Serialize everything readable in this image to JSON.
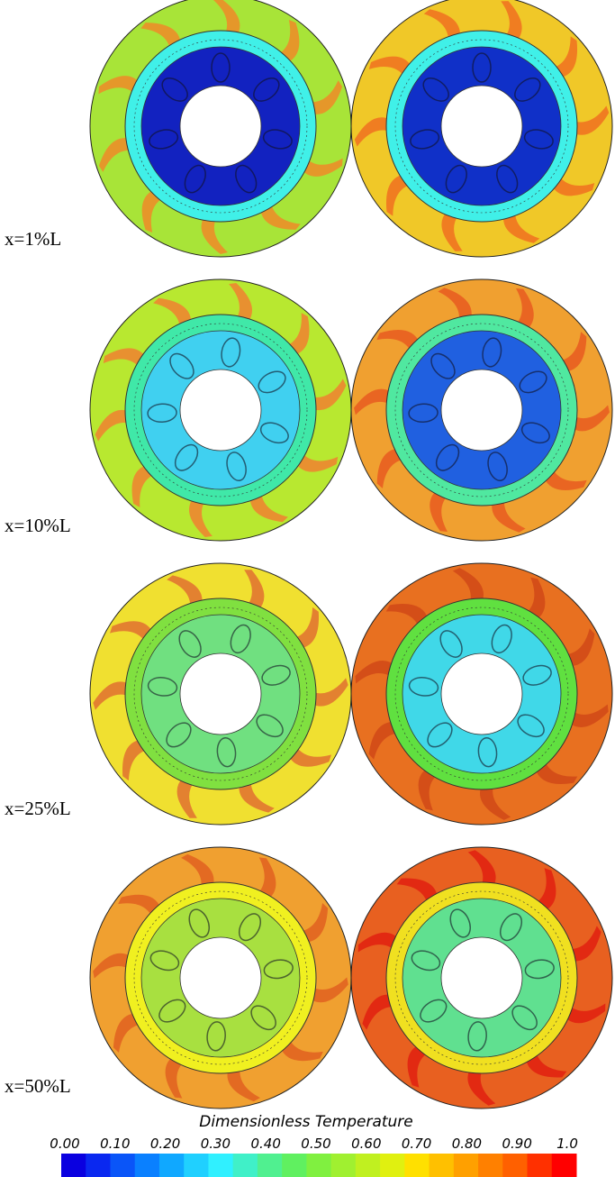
{
  "rows": [
    {
      "label": "x=1%L"
    },
    {
      "label": "x=10%L"
    },
    {
      "label": "x=25%L"
    },
    {
      "label": "x=50%L"
    }
  ],
  "colorbar": {
    "title": "Dimensionless Temperature",
    "ticks": [
      "0.00",
      "0.10",
      "0.20",
      "0.30",
      "0.40",
      "0.50",
      "0.60",
      "0.70",
      "0.80",
      "0.90",
      "1.0"
    ],
    "colors": [
      "#0a00e0",
      "#0a28f0",
      "#0a55f8",
      "#0a80ff",
      "#10a8ff",
      "#20d0ff",
      "#30f0ff",
      "#40f0c8",
      "#50f090",
      "#60f060",
      "#80f040",
      "#a0f030",
      "#c0f020",
      "#e0f010",
      "#ffe000",
      "#ffc000",
      "#ffa000",
      "#ff8000",
      "#ff6000",
      "#ff3000",
      "#ff0000"
    ]
  }
}
